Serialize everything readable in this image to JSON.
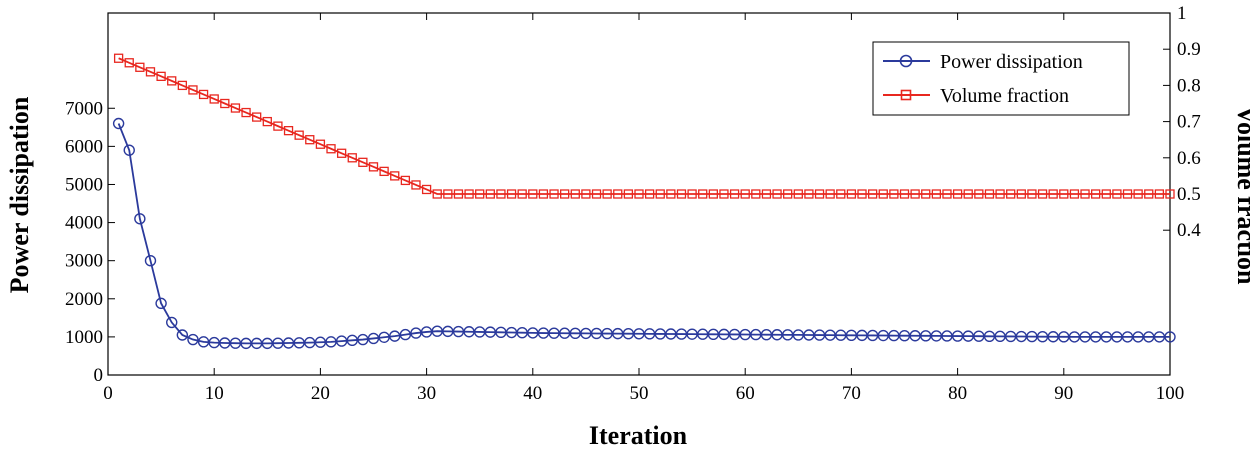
{
  "chart_data": {
    "type": "line",
    "xlabel": "Iteration",
    "ylabel_left": "Power dissipation",
    "ylabel_right": "Volume fraction",
    "xlim": [
      0,
      100
    ],
    "ylim_left": [
      0,
      9500
    ],
    "ylim_right": [
      0,
      1
    ],
    "x_ticks": [
      0,
      10,
      20,
      30,
      40,
      50,
      60,
      70,
      80,
      90,
      100
    ],
    "y_ticks_left": [
      0,
      1000,
      2000,
      3000,
      4000,
      5000,
      6000,
      7000
    ],
    "y_ticks_right": [
      0.4,
      0.5,
      0.6,
      0.7,
      0.8,
      0.9,
      1
    ],
    "grid": false,
    "legend_position": "top-right",
    "series": [
      {
        "name": "Power dissipation",
        "axis": "left",
        "color": "#2b3a9c",
        "marker": "circle",
        "x": [
          1,
          2,
          3,
          4,
          5,
          6,
          7,
          8,
          9,
          10,
          11,
          12,
          13,
          14,
          15,
          16,
          17,
          18,
          19,
          20,
          21,
          22,
          23,
          24,
          25,
          26,
          27,
          28,
          29,
          30,
          31,
          32,
          33,
          34,
          35,
          36,
          37,
          38,
          39,
          40,
          41,
          42,
          43,
          44,
          45,
          46,
          47,
          48,
          49,
          50,
          51,
          52,
          53,
          54,
          55,
          56,
          57,
          58,
          59,
          60,
          61,
          62,
          63,
          64,
          65,
          66,
          67,
          68,
          69,
          70,
          71,
          72,
          73,
          74,
          75,
          76,
          77,
          78,
          79,
          80,
          81,
          82,
          83,
          84,
          85,
          86,
          87,
          88,
          89,
          90,
          91,
          92,
          93,
          94,
          95,
          96,
          97,
          98,
          99,
          100
        ],
        "values": [
          6600,
          5900,
          4100,
          3000,
          1880,
          1380,
          1050,
          930,
          870,
          850,
          840,
          835,
          830,
          830,
          830,
          835,
          840,
          845,
          850,
          860,
          870,
          890,
          910,
          930,
          960,
          990,
          1020,
          1060,
          1100,
          1130,
          1150,
          1145,
          1140,
          1135,
          1130,
          1125,
          1120,
          1115,
          1110,
          1105,
          1100,
          1098,
          1096,
          1094,
          1092,
          1090,
          1088,
          1086,
          1084,
          1082,
          1080,
          1078,
          1076,
          1074,
          1072,
          1070,
          1068,
          1066,
          1064,
          1062,
          1060,
          1058,
          1056,
          1054,
          1052,
          1050,
          1048,
          1046,
          1044,
          1042,
          1040,
          1038,
          1036,
          1034,
          1032,
          1030,
          1028,
          1026,
          1024,
          1022,
          1020,
          1018,
          1016,
          1014,
          1012,
          1010,
          1008,
          1006,
          1004,
          1002,
          1000,
          1000,
          1000,
          1000,
          1000,
          1000,
          1000,
          1000,
          1000,
          1000
        ]
      },
      {
        "name": "Volume fraction",
        "axis": "right",
        "color": "#e8271f",
        "marker": "square",
        "x": [
          1,
          2,
          3,
          4,
          5,
          6,
          7,
          8,
          9,
          10,
          11,
          12,
          13,
          14,
          15,
          16,
          17,
          18,
          19,
          20,
          21,
          22,
          23,
          24,
          25,
          26,
          27,
          28,
          29,
          30,
          31,
          32,
          33,
          34,
          35,
          36,
          37,
          38,
          39,
          40,
          41,
          42,
          43,
          44,
          45,
          46,
          47,
          48,
          49,
          50,
          51,
          52,
          53,
          54,
          55,
          56,
          57,
          58,
          59,
          60,
          61,
          62,
          63,
          64,
          65,
          66,
          67,
          68,
          69,
          70,
          71,
          72,
          73,
          74,
          75,
          76,
          77,
          78,
          79,
          80,
          81,
          82,
          83,
          84,
          85,
          86,
          87,
          88,
          89,
          90,
          91,
          92,
          93,
          94,
          95,
          96,
          97,
          98,
          99,
          100
        ],
        "values": [
          0.875,
          0.8625,
          0.85,
          0.8375,
          0.825,
          0.8125,
          0.8,
          0.7875,
          0.775,
          0.7625,
          0.75,
          0.7375,
          0.725,
          0.7125,
          0.7,
          0.6875,
          0.675,
          0.6625,
          0.65,
          0.6375,
          0.625,
          0.6125,
          0.6,
          0.5875,
          0.575,
          0.5625,
          0.55,
          0.5375,
          0.525,
          0.5125,
          0.5,
          0.5,
          0.5,
          0.5,
          0.5,
          0.5,
          0.5,
          0.5,
          0.5,
          0.5,
          0.5,
          0.5,
          0.5,
          0.5,
          0.5,
          0.5,
          0.5,
          0.5,
          0.5,
          0.5,
          0.5,
          0.5,
          0.5,
          0.5,
          0.5,
          0.5,
          0.5,
          0.5,
          0.5,
          0.5,
          0.5,
          0.5,
          0.5,
          0.5,
          0.5,
          0.5,
          0.5,
          0.5,
          0.5,
          0.5,
          0.5,
          0.5,
          0.5,
          0.5,
          0.5,
          0.5,
          0.5,
          0.5,
          0.5,
          0.5,
          0.5,
          0.5,
          0.5,
          0.5,
          0.5,
          0.5,
          0.5,
          0.5,
          0.5,
          0.5,
          0.5,
          0.5,
          0.5,
          0.5,
          0.5,
          0.5,
          0.5,
          0.5,
          0.5,
          0.5
        ]
      }
    ]
  }
}
